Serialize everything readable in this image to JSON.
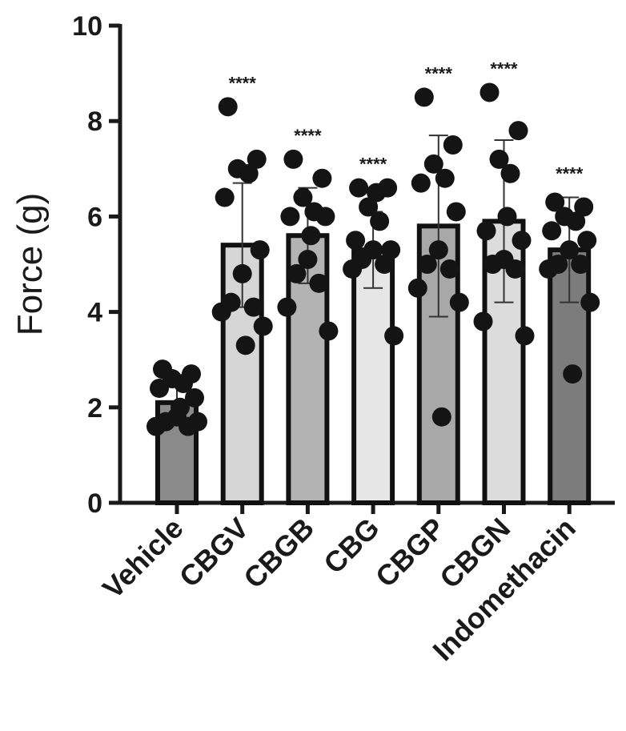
{
  "chart_data": {
    "type": "bar",
    "ylabel": "Force (g)",
    "xlabel": "",
    "ylim": [
      0,
      10
    ],
    "yticks": [
      "0",
      "2",
      "4",
      "6",
      "8",
      "10"
    ],
    "categories": [
      "Vehicle",
      "CBGV",
      "CBGB",
      "CBG",
      "CBGP",
      "CBGN",
      "Indomethacin"
    ],
    "values": [
      2.1,
      5.4,
      5.6,
      5.3,
      5.8,
      5.9,
      5.3
    ],
    "sd": [
      0.4,
      1.3,
      1.0,
      0.8,
      1.9,
      1.7,
      1.1
    ],
    "significance": [
      "",
      "****",
      "****",
      "****",
      "****",
      "****",
      "****"
    ],
    "bar_colors": [
      "#8a8a8a",
      "#d6d6d6",
      "#b3b3b3",
      "#e6e6e6",
      "#a8a8a8",
      "#dcdcdc",
      "#7c7c7c"
    ],
    "points": [
      [
        2.8,
        2.7,
        2.6,
        2.5,
        2.4,
        2.2,
        1.8,
        1.7,
        1.6,
        1.6,
        1.7,
        2.0
      ],
      [
        8.3,
        7.2,
        7.0,
        6.9,
        6.4,
        5.3,
        4.8,
        4.2,
        4.1,
        4.0,
        3.7,
        3.3
      ],
      [
        7.2,
        6.8,
        6.4,
        6.1,
        6.0,
        6.0,
        5.1,
        4.8,
        4.6,
        4.1,
        3.6,
        5.6
      ],
      [
        6.6,
        6.6,
        6.2,
        5.9,
        5.5,
        5.3,
        5.3,
        5.1,
        5.0,
        4.9,
        3.5,
        6.5
      ],
      [
        8.5,
        7.5,
        7.1,
        6.8,
        6.7,
        6.1,
        5.3,
        5.0,
        4.9,
        4.5,
        4.2,
        1.8
      ],
      [
        8.6,
        7.8,
        7.2,
        6.9,
        5.7,
        5.5,
        5.1,
        5.0,
        4.9,
        3.8,
        3.5,
        6.0
      ],
      [
        6.3,
        6.2,
        6.0,
        5.9,
        5.7,
        5.5,
        5.3,
        5.0,
        5.0,
        4.9,
        4.2,
        2.7
      ]
    ]
  }
}
